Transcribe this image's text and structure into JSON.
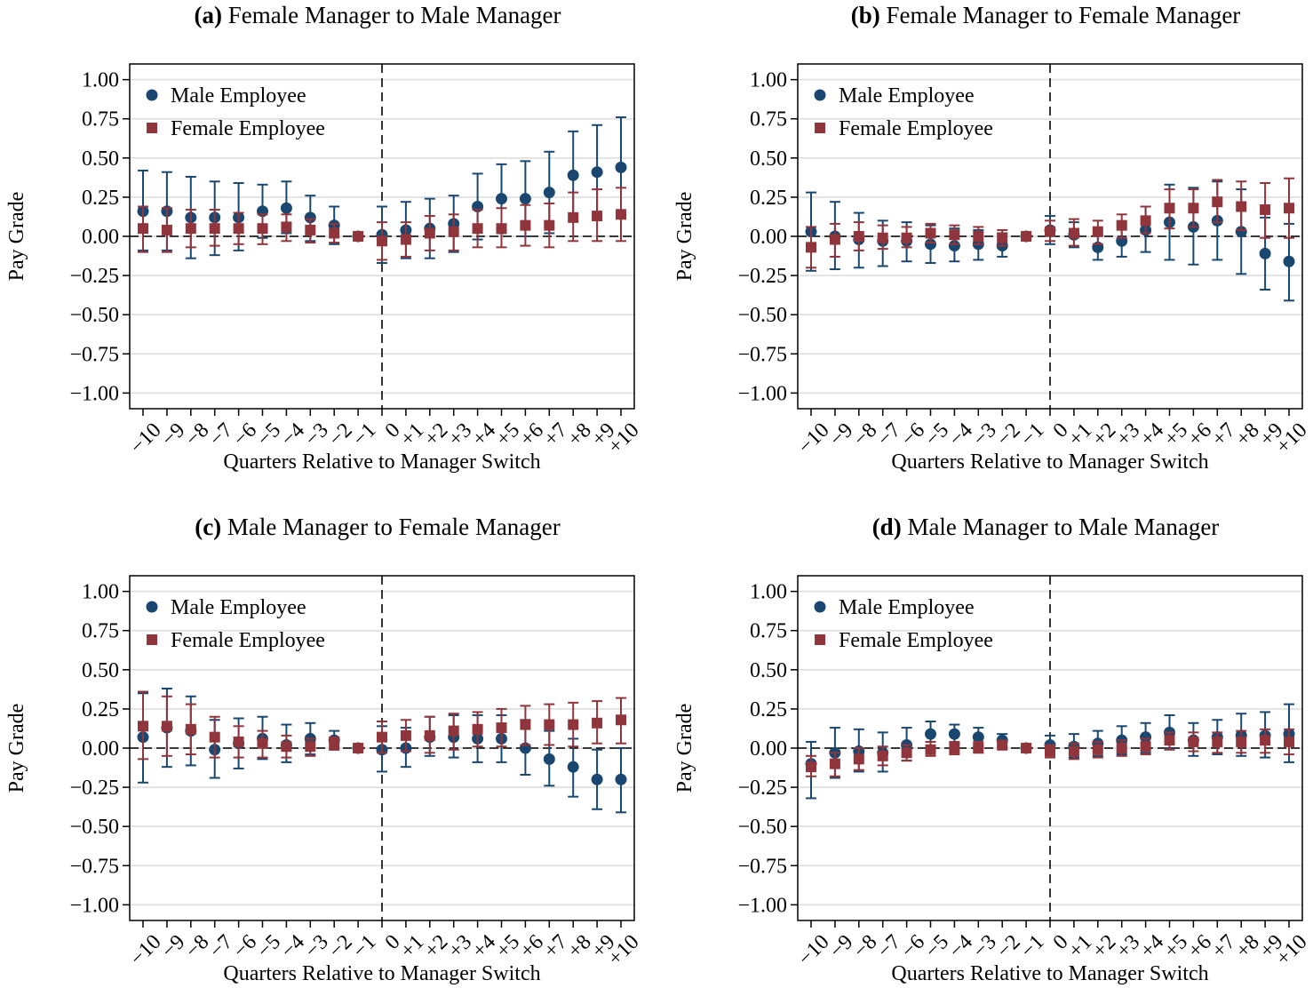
{
  "chart_data": [
    {
      "type": "errorbar",
      "label": "(a)",
      "title": "Female Manager to Male Manager",
      "x_label": "Quarters Relative to Manager Switch",
      "y_label": "Pay Grade",
      "categories": [
        "−10",
        "−9",
        "−8",
        "−7",
        "−6",
        "−5",
        "−4",
        "−3",
        "−2",
        "−1",
        "0",
        "+1",
        "+2",
        "+3",
        "+4",
        "+5",
        "+6",
        "+7",
        "+8",
        "+9",
        "+10"
      ],
      "ylim": [
        -1.1,
        1.1
      ],
      "yticks": [
        {
          "value": 1,
          "label": "1.00"
        },
        {
          "value": 0.75,
          "label": "0.75"
        },
        {
          "value": 0.5,
          "label": "0.50"
        },
        {
          "value": 0.25,
          "label": "0.25"
        },
        {
          "value": 0,
          "label": "0.00"
        },
        {
          "value": -0.25,
          "label": "−0.25"
        },
        {
          "value": -0.5,
          "label": "−0.50"
        },
        {
          "value": -0.75,
          "label": "−0.75"
        },
        {
          "value": -1,
          "label": "−1.00"
        }
      ],
      "grid": true,
      "legend": "upper left",
      "series": [
        {
          "name": "Male Employee",
          "color": "#1a476f",
          "marker": "circle",
          "values": [
            0.16,
            0.16,
            0.12,
            0.12,
            0.12,
            0.16,
            0.18,
            0.12,
            0.07,
            0,
            0.01,
            0.04,
            0.05,
            0.08,
            0.19,
            0.24,
            0.24,
            0.28,
            0.39,
            0.41,
            0.44
          ],
          "lower": [
            -0.09,
            -0.09,
            -0.14,
            -0.12,
            -0.09,
            -0.01,
            0.02,
            -0.03,
            -0.05,
            0,
            -0.17,
            -0.14,
            -0.14,
            -0.1,
            -0.02,
            0.02,
            0,
            0.02,
            0.1,
            0.11,
            0.12
          ],
          "upper": [
            0.42,
            0.41,
            0.38,
            0.35,
            0.34,
            0.33,
            0.35,
            0.26,
            0.19,
            0,
            0.19,
            0.22,
            0.24,
            0.26,
            0.4,
            0.46,
            0.48,
            0.54,
            0.67,
            0.71,
            0.76
          ]
        },
        {
          "name": "Female Employee",
          "color": "#90353b",
          "marker": "square",
          "values": [
            0.05,
            0.04,
            0.05,
            0.05,
            0.05,
            0.05,
            0.06,
            0.04,
            0.02,
            0,
            -0.03,
            -0.02,
            0.02,
            0.03,
            0.05,
            0.05,
            0.07,
            0.07,
            0.12,
            0.13,
            0.14
          ],
          "lower": [
            -0.1,
            -0.1,
            -0.07,
            -0.06,
            -0.05,
            -0.05,
            -0.03,
            -0.04,
            -0.04,
            0,
            -0.15,
            -0.13,
            -0.09,
            -0.09,
            -0.07,
            -0.07,
            -0.06,
            -0.07,
            -0.03,
            -0.03,
            -0.03
          ],
          "upper": [
            0.19,
            0.18,
            0.17,
            0.17,
            0.15,
            0.14,
            0.14,
            0.11,
            0.08,
            0,
            0.09,
            0.09,
            0.13,
            0.14,
            0.17,
            0.18,
            0.2,
            0.21,
            0.28,
            0.3,
            0.31
          ]
        }
      ]
    },
    {
      "type": "errorbar",
      "label": "(b)",
      "title": "Female Manager to Female Manager",
      "x_label": "Quarters Relative to Manager Switch",
      "y_label": "Pay Grade",
      "categories": [
        "−10",
        "−9",
        "−8",
        "−7",
        "−6",
        "−5",
        "−4",
        "−3",
        "−2",
        "−1",
        "0",
        "+1",
        "+2",
        "+3",
        "+4",
        "+5",
        "+6",
        "+7",
        "+8",
        "+9",
        "+10"
      ],
      "ylim": [
        -1.1,
        1.1
      ],
      "yticks": [
        {
          "value": 1,
          "label": "1.00"
        },
        {
          "value": 0.75,
          "label": "0.75"
        },
        {
          "value": 0.5,
          "label": "0.50"
        },
        {
          "value": 0.25,
          "label": "0.25"
        },
        {
          "value": 0,
          "label": "0.00"
        },
        {
          "value": -0.25,
          "label": "−0.25"
        },
        {
          "value": -0.5,
          "label": "−0.50"
        },
        {
          "value": -0.75,
          "label": "−0.75"
        },
        {
          "value": -1,
          "label": "−1.00"
        }
      ],
      "grid": true,
      "legend": "upper left",
      "series": [
        {
          "name": "Male Employee",
          "color": "#1a476f",
          "marker": "circle",
          "values": [
            0.03,
            0,
            -0.02,
            -0.03,
            -0.03,
            -0.05,
            -0.06,
            -0.05,
            -0.06,
            0,
            0.04,
            0.01,
            -0.07,
            -0.03,
            0.04,
            0.09,
            0.06,
            0.1,
            0.03,
            -0.11,
            -0.16
          ],
          "lower": [
            -0.22,
            -0.21,
            -0.2,
            -0.19,
            -0.16,
            -0.17,
            -0.16,
            -0.15,
            -0.13,
            0,
            -0.05,
            -0.07,
            -0.15,
            -0.13,
            -0.1,
            -0.15,
            -0.18,
            -0.15,
            -0.24,
            -0.34,
            -0.41
          ],
          "upper": [
            0.28,
            0.22,
            0.15,
            0.1,
            0.09,
            0.07,
            0.05,
            0.04,
            0.02,
            0,
            0.13,
            0.09,
            0.01,
            0.07,
            0.19,
            0.33,
            0.31,
            0.35,
            0.3,
            0.12,
            0.08
          ]
        },
        {
          "name": "Female Employee",
          "color": "#90353b",
          "marker": "square",
          "values": [
            -0.07,
            -0.02,
            0,
            -0.01,
            -0.01,
            0.02,
            0.01,
            0,
            -0.01,
            0,
            0.03,
            0.02,
            0.03,
            0.07,
            0.1,
            0.18,
            0.18,
            0.22,
            0.19,
            0.17,
            0.18
          ],
          "lower": [
            -0.2,
            -0.13,
            -0.09,
            -0.08,
            -0.07,
            -0.04,
            -0.05,
            -0.05,
            -0.06,
            0,
            -0.03,
            -0.06,
            -0.05,
            -0.01,
            0.02,
            0.05,
            0.06,
            0.09,
            0.04,
            -0.01,
            -0.01
          ],
          "upper": [
            0.06,
            0.08,
            0.09,
            0.07,
            0.06,
            0.08,
            0.07,
            0.06,
            0.04,
            0,
            0.1,
            0.11,
            0.1,
            0.14,
            0.19,
            0.3,
            0.3,
            0.36,
            0.35,
            0.34,
            0.37
          ]
        }
      ]
    },
    {
      "type": "errorbar",
      "label": "(c)",
      "title": "Male Manager to Female Manager",
      "x_label": "Quarters Relative to Manager Switch",
      "y_label": "Pay Grade",
      "categories": [
        "−10",
        "−9",
        "−8",
        "−7",
        "−6",
        "−5",
        "−4",
        "−3",
        "−2",
        "−1",
        "0",
        "+1",
        "+2",
        "+3",
        "+4",
        "+5",
        "+6",
        "+7",
        "+8",
        "+9",
        "+10"
      ],
      "ylim": [
        -1.1,
        1.1
      ],
      "yticks": [
        {
          "value": 1,
          "label": "1.00"
        },
        {
          "value": 0.75,
          "label": "0.75"
        },
        {
          "value": 0.5,
          "label": "0.50"
        },
        {
          "value": 0.25,
          "label": "0.25"
        },
        {
          "value": 0,
          "label": "0.00"
        },
        {
          "value": -0.25,
          "label": "−0.25"
        },
        {
          "value": -0.5,
          "label": "−0.50"
        },
        {
          "value": -0.75,
          "label": "−0.75"
        },
        {
          "value": -1,
          "label": "−1.00"
        }
      ],
      "grid": true,
      "legend": "upper left",
      "series": [
        {
          "name": "Male Employee",
          "color": "#1a476f",
          "marker": "circle",
          "values": [
            0.07,
            0.13,
            0.11,
            -0.01,
            0.03,
            0.06,
            0.02,
            0.06,
            0.05,
            0,
            -0.01,
            0,
            0.07,
            0.07,
            0.06,
            0.06,
            0,
            -0.07,
            -0.12,
            -0.2,
            -0.2
          ],
          "lower": [
            -0.22,
            -0.12,
            -0.11,
            -0.19,
            -0.13,
            -0.07,
            -0.09,
            -0.04,
            -0.01,
            0,
            -0.15,
            -0.12,
            -0.05,
            -0.06,
            -0.09,
            -0.09,
            -0.17,
            -0.24,
            -0.31,
            -0.39,
            -0.41
          ],
          "upper": [
            0.35,
            0.38,
            0.33,
            0.18,
            0.19,
            0.2,
            0.15,
            0.16,
            0.11,
            0,
            0.14,
            0.13,
            0.2,
            0.21,
            0.21,
            0.21,
            0.18,
            0.11,
            0.06,
            -0.01,
            0
          ]
        },
        {
          "name": "Female Employee",
          "color": "#90353b",
          "marker": "square",
          "values": [
            0.14,
            0.14,
            0.12,
            0.07,
            0.04,
            0.03,
            0.01,
            0.01,
            0.03,
            0,
            0.07,
            0.08,
            0.08,
            0.11,
            0.12,
            0.13,
            0.15,
            0.15,
            0.15,
            0.16,
            0.18
          ],
          "lower": [
            -0.07,
            -0.05,
            -0.04,
            -0.06,
            -0.06,
            -0.06,
            -0.06,
            -0.05,
            -0.01,
            0,
            -0.03,
            -0.02,
            -0.03,
            -0.01,
            0.01,
            0.01,
            0.02,
            0.02,
            0.01,
            0.03,
            0.03
          ],
          "upper": [
            0.36,
            0.33,
            0.28,
            0.2,
            0.14,
            0.11,
            0.08,
            0.06,
            0.07,
            0,
            0.17,
            0.18,
            0.2,
            0.22,
            0.23,
            0.25,
            0.27,
            0.28,
            0.29,
            0.3,
            0.32
          ]
        }
      ]
    },
    {
      "type": "errorbar",
      "label": "(d)",
      "title": "Male Manager to Male Manager",
      "x_label": "Quarters Relative to Manager Switch",
      "y_label": "Pay Grade",
      "categories": [
        "−10",
        "−9",
        "−8",
        "−7",
        "−6",
        "−5",
        "−4",
        "−3",
        "−2",
        "−1",
        "0",
        "+1",
        "+2",
        "+3",
        "+4",
        "+5",
        "+6",
        "+7",
        "+8",
        "+9",
        "+10"
      ],
      "ylim": [
        -1.1,
        1.1
      ],
      "yticks": [
        {
          "value": 1,
          "label": "1.00"
        },
        {
          "value": 0.75,
          "label": "0.75"
        },
        {
          "value": 0.5,
          "label": "0.50"
        },
        {
          "value": 0.25,
          "label": "0.25"
        },
        {
          "value": 0,
          "label": "0.00"
        },
        {
          "value": -0.25,
          "label": "−0.25"
        },
        {
          "value": -0.5,
          "label": "−0.50"
        },
        {
          "value": -0.75,
          "label": "−0.75"
        },
        {
          "value": -1,
          "label": "−1.00"
        }
      ],
      "grid": true,
      "legend": "upper left",
      "series": [
        {
          "name": "Male Employee",
          "color": "#1a476f",
          "marker": "circle",
          "values": [
            -0.1,
            -0.03,
            -0.02,
            -0.03,
            0.02,
            0.09,
            0.09,
            0.07,
            0.05,
            0,
            0.02,
            0.01,
            0.03,
            0.05,
            0.07,
            0.1,
            0.05,
            0.07,
            0.08,
            0.08,
            0.09
          ],
          "lower": [
            -0.32,
            -0.19,
            -0.15,
            -0.15,
            -0.08,
            0.01,
            0.03,
            0.01,
            0.01,
            0,
            -0.04,
            -0.06,
            -0.05,
            -0.04,
            -0.03,
            0,
            -0.05,
            -0.04,
            -0.05,
            -0.06,
            -0.09
          ],
          "upper": [
            0.04,
            0.13,
            0.12,
            0.1,
            0.13,
            0.17,
            0.15,
            0.13,
            0.09,
            0,
            0.08,
            0.09,
            0.11,
            0.14,
            0.16,
            0.21,
            0.16,
            0.18,
            0.22,
            0.23,
            0.28
          ]
        },
        {
          "name": "Female Employee",
          "color": "#90353b",
          "marker": "square",
          "values": [
            -0.12,
            -0.1,
            -0.07,
            -0.05,
            -0.03,
            -0.01,
            0,
            0,
            0.02,
            0,
            -0.02,
            -0.02,
            -0.01,
            0,
            0.01,
            0.05,
            0.04,
            0.04,
            0.04,
            0.05,
            0.04
          ],
          "lower": [
            -0.18,
            -0.18,
            -0.14,
            -0.11,
            -0.08,
            -0.05,
            -0.04,
            -0.03,
            -0.01,
            0,
            -0.06,
            -0.07,
            -0.06,
            -0.05,
            -0.04,
            -0.01,
            -0.02,
            -0.03,
            -0.03,
            -0.03,
            -0.04
          ],
          "upper": [
            -0.05,
            -0.03,
            0,
            0.01,
            0.02,
            0.04,
            0.04,
            0.04,
            0.04,
            0,
            0.02,
            0.03,
            0.04,
            0.05,
            0.06,
            0.1,
            0.1,
            0.1,
            0.11,
            0.12,
            0.12
          ]
        }
      ]
    }
  ]
}
